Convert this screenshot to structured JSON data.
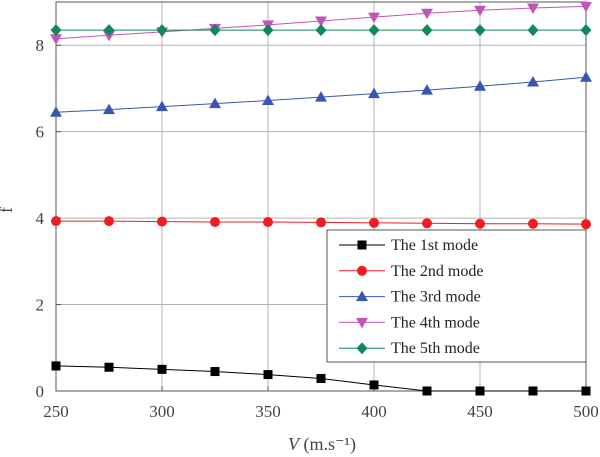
{
  "chart_data": {
    "type": "line",
    "title": "",
    "xlabel": "V (m.s⁻¹)",
    "xlabel_italic": "V",
    "xlabel_rest": " (m.s⁻¹)",
    "ylabel": "f",
    "xlim": [
      250,
      500
    ],
    "ylim": [
      0,
      9
    ],
    "xticks": [
      250,
      300,
      350,
      400,
      450,
      500
    ],
    "yticks": [
      0,
      2,
      4,
      6,
      8
    ],
    "grid": true,
    "legend_position": "center-right",
    "x": [
      250,
      275,
      300,
      325,
      350,
      375,
      400,
      425,
      450,
      475,
      500
    ],
    "series": [
      {
        "name": "The 1st mode",
        "color": "#000000",
        "marker": "square",
        "values": [
          0.58,
          0.55,
          0.5,
          0.45,
          0.38,
          0.29,
          0.14,
          0.0,
          0.0,
          0.0,
          0.0
        ]
      },
      {
        "name": "The 2nd mode",
        "color": "#ee1c25",
        "marker": "circle",
        "values": [
          3.93,
          3.93,
          3.92,
          3.91,
          3.91,
          3.9,
          3.89,
          3.88,
          3.87,
          3.87,
          3.86
        ]
      },
      {
        "name": "The 3rd mode",
        "color": "#3a57b0",
        "marker": "triangle-up",
        "values": [
          6.45,
          6.51,
          6.58,
          6.65,
          6.72,
          6.8,
          6.88,
          6.96,
          7.05,
          7.15,
          7.26
        ]
      },
      {
        "name": "The 4th mode",
        "color": "#c056b8",
        "marker": "triangle-down",
        "values": [
          8.15,
          8.23,
          8.31,
          8.39,
          8.47,
          8.56,
          8.65,
          8.74,
          8.81,
          8.86,
          8.9
        ]
      },
      {
        "name": "The 5th mode",
        "color": "#12875a",
        "marker": "diamond",
        "values": [
          8.35,
          8.35,
          8.35,
          8.35,
          8.35,
          8.35,
          8.35,
          8.35,
          8.35,
          8.35,
          8.35
        ]
      }
    ]
  }
}
